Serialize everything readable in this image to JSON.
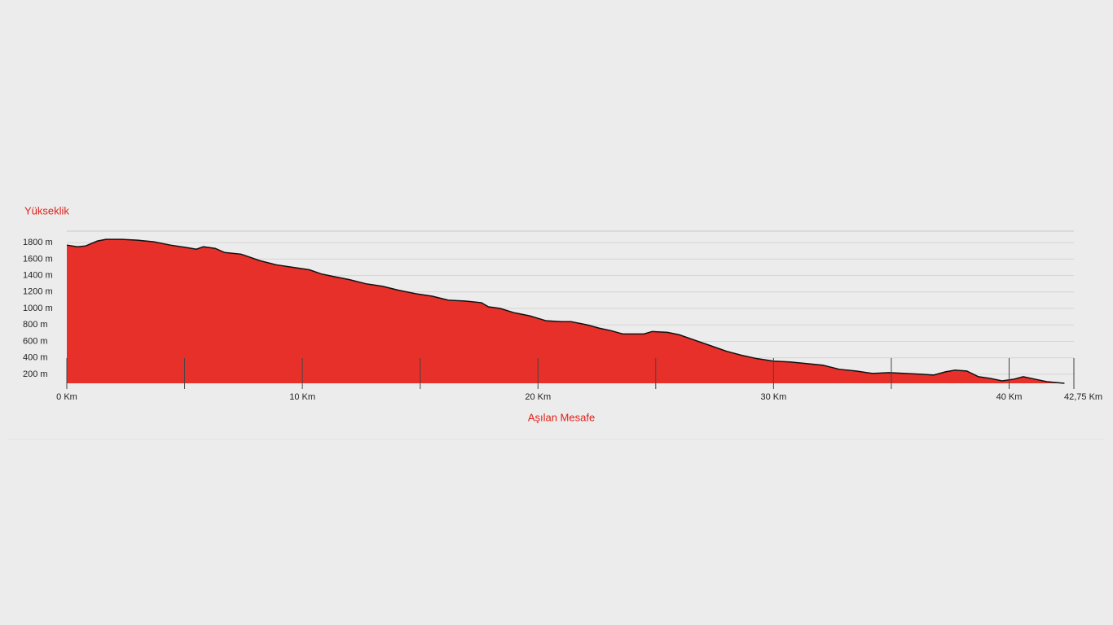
{
  "chart_data": {
    "type": "area",
    "y_title": "Yükseklik",
    "x_title": "Aşılan Mesafe",
    "color": "#e8302a",
    "line_color": "#111111",
    "x": [
      0,
      0.45,
      0.8,
      1.3,
      1.66,
      2.35,
      3.0,
      3.7,
      4.4,
      5.1,
      5.5,
      5.8,
      6.3,
      6.7,
      7.4,
      7.7,
      8.2,
      8.9,
      9.6,
      10.3,
      10.8,
      11.3,
      12.0,
      12.7,
      13.4,
      14.1,
      14.8,
      15.5,
      16.2,
      16.9,
      17.6,
      17.9,
      18.4,
      18.96,
      19.65,
      20.35,
      21.0,
      21.4,
      22.1,
      22.6,
      23.1,
      23.6,
      24.5,
      24.85,
      25.5,
      26.0,
      26.6,
      27.3,
      28.0,
      28.65,
      29.3,
      30.0,
      30.7,
      31.4,
      32.1,
      32.8,
      33.5,
      34.2,
      34.9,
      35.6,
      36.3,
      36.8,
      37.3,
      37.7,
      38.2,
      38.7,
      39.2,
      39.7,
      40.2,
      40.6,
      41.1,
      41.6,
      42.35
    ],
    "values": [
      1770,
      1750,
      1760,
      1820,
      1840,
      1840,
      1830,
      1810,
      1770,
      1740,
      1720,
      1750,
      1730,
      1680,
      1660,
      1630,
      1580,
      1530,
      1500,
      1470,
      1420,
      1390,
      1350,
      1300,
      1270,
      1220,
      1180,
      1150,
      1100,
      1090,
      1070,
      1020,
      1000,
      950,
      910,
      850,
      840,
      840,
      800,
      760,
      730,
      690,
      690,
      720,
      710,
      680,
      620,
      550,
      480,
      430,
      390,
      360,
      350,
      330,
      310,
      260,
      240,
      210,
      220,
      210,
      200,
      190,
      230,
      250,
      240,
      170,
      150,
      120,
      140,
      170,
      140,
      110,
      90
    ],
    "xlim": [
      0,
      42.75
    ],
    "ylim": [
      90,
      1940
    ],
    "xticks": [
      {
        "value": 0,
        "label": "0 Km"
      },
      {
        "value": 10,
        "label": "10 Km"
      },
      {
        "value": 20,
        "label": "20 Km"
      },
      {
        "value": 30,
        "label": "30 Km"
      },
      {
        "value": 40,
        "label": "40 Km"
      },
      {
        "value": 42.75,
        "label": "42,75 Km"
      }
    ],
    "minor_xticks": [
      5,
      15,
      25,
      35
    ],
    "yticks": [
      {
        "value": 200,
        "label": "200 m"
      },
      {
        "value": 400,
        "label": "400 m"
      },
      {
        "value": 600,
        "label": "600 m"
      },
      {
        "value": 800,
        "label": "800 m"
      },
      {
        "value": 1000,
        "label": "1000 m"
      },
      {
        "value": 1200,
        "label": "1200 m"
      },
      {
        "value": 1400,
        "label": "1400 m"
      },
      {
        "value": 1600,
        "label": "1600 m"
      },
      {
        "value": 1800,
        "label": "1800 m"
      }
    ],
    "grid": true
  }
}
